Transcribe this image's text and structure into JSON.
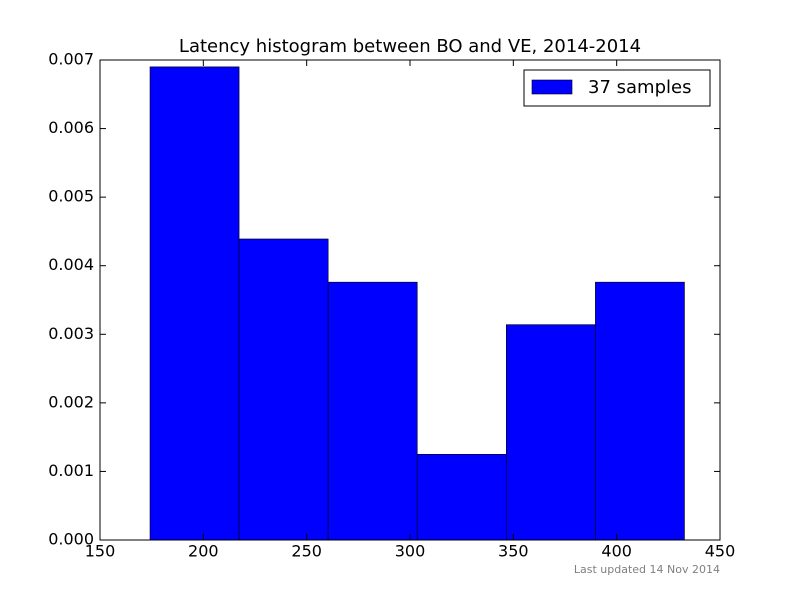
{
  "chart_data": {
    "type": "histogram",
    "title": "Latency histogram between BO and VE, 2014-2014",
    "bins": [
      174.2,
      217.3,
      260.4,
      303.5,
      346.6,
      389.7,
      432.8
    ],
    "series": [
      {
        "name": "37 samples",
        "color": "#0000ff",
        "values": [
          0.0069,
          0.00439,
          0.00376,
          0.00125,
          0.00314,
          0.00376
        ]
      }
    ],
    "xlim": [
      150,
      450
    ],
    "xticks": [
      150,
      200,
      250,
      300,
      350,
      400,
      450
    ],
    "ylim": [
      0,
      0.007
    ],
    "yticks": [
      {
        "value": 0,
        "label": "0.000"
      },
      {
        "value": 0.001,
        "label": "0.001"
      },
      {
        "value": 0.002,
        "label": "0.002"
      },
      {
        "value": 0.003,
        "label": "0.003"
      },
      {
        "value": 0.004,
        "label": "0.004"
      },
      {
        "value": 0.005,
        "label": "0.005"
      },
      {
        "value": 0.006,
        "label": "0.006"
      },
      {
        "value": 0.007,
        "label": "0.007"
      }
    ],
    "grid": false,
    "legend": "upper-right"
  },
  "footer": "Last updated 14 Nov 2014"
}
